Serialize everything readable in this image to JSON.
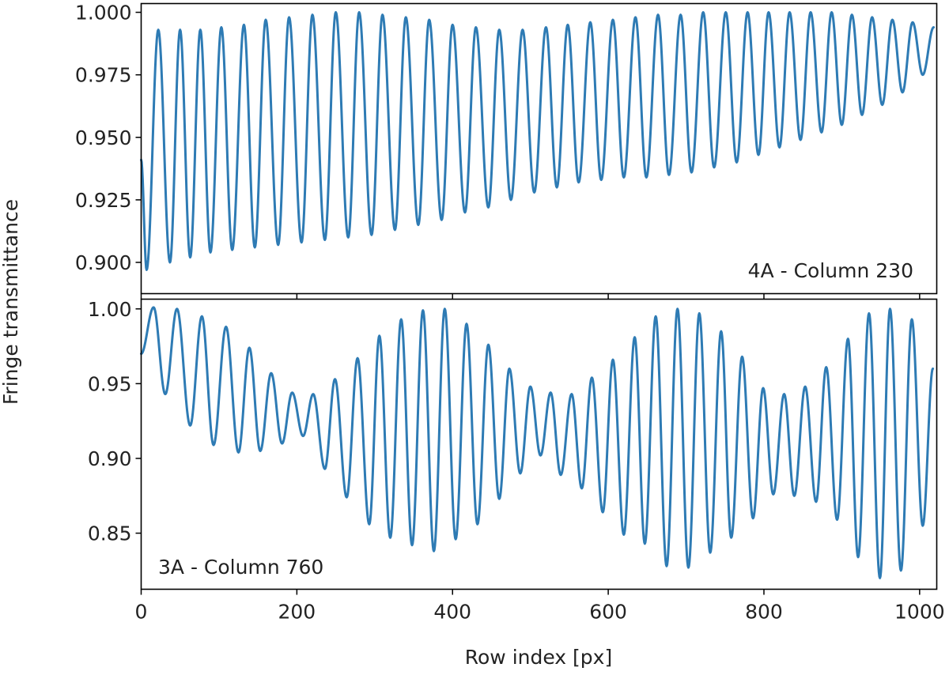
{
  "figure": {
    "ylabel": "Fringe transmittance",
    "xlabel": "Row index [px]"
  },
  "chart_data": [
    {
      "type": "line",
      "panel": "top",
      "annotation": "4A - Column 230",
      "annotation_position": "bottom-right",
      "xlim": [
        0,
        1022
      ],
      "ylim": [
        0.8875,
        1.0035
      ],
      "yticks": [
        0.9,
        0.925,
        0.95,
        0.975,
        1.0
      ],
      "ytick_labels": [
        "0.900",
        "0.925",
        "0.950",
        "0.975",
        "1.000"
      ],
      "xticks": [
        0,
        200,
        400,
        600,
        800,
        1000
      ],
      "xtick_labels": [
        "",
        "",
        "",
        "",
        "",
        ""
      ],
      "line_color": "#2e7bb4",
      "series": [
        {
          "extrema_x": [
            0,
            7,
            22,
            37,
            50,
            63,
            76,
            89,
            103,
            117,
            132,
            146,
            160,
            176,
            190,
            206,
            220,
            236,
            250,
            266,
            280,
            296,
            310,
            326,
            340,
            356,
            370,
            386,
            400,
            416,
            430,
            446,
            460,
            475,
            490,
            505,
            520,
            534,
            548,
            562,
            577,
            591,
            606,
            620,
            635,
            649,
            664,
            678,
            693,
            707,
            722,
            736,
            751,
            765,
            779,
            793,
            806,
            820,
            833,
            847,
            860,
            874,
            887,
            900,
            913,
            926,
            939,
            952,
            965,
            978,
            991,
            1004,
            1018
          ],
          "extrema_y": [
            0.941,
            0.897,
            0.993,
            0.9,
            0.993,
            0.902,
            0.993,
            0.904,
            0.994,
            0.905,
            0.995,
            0.906,
            0.997,
            0.907,
            0.998,
            0.908,
            0.999,
            0.909,
            1.0,
            0.91,
            1.0,
            0.911,
            0.999,
            0.913,
            0.998,
            0.915,
            0.997,
            0.917,
            0.995,
            0.92,
            0.994,
            0.922,
            0.993,
            0.925,
            0.993,
            0.928,
            0.994,
            0.93,
            0.995,
            0.932,
            0.996,
            0.933,
            0.997,
            0.934,
            0.998,
            0.934,
            0.999,
            0.935,
            0.999,
            0.936,
            1.0,
            0.938,
            1.0,
            0.94,
            1.0,
            0.943,
            1.0,
            0.946,
            1.0,
            0.949,
            1.0,
            0.952,
            1.0,
            0.955,
            0.999,
            0.959,
            0.998,
            0.963,
            0.997,
            0.968,
            0.996,
            0.975,
            0.994
          ]
        }
      ]
    },
    {
      "type": "line",
      "panel": "bottom",
      "annotation": "3A - Column 760",
      "annotation_position": "bottom-left",
      "xlim": [
        0,
        1022
      ],
      "ylim": [
        0.8125,
        1.0065
      ],
      "yticks": [
        0.85,
        0.9,
        0.95,
        1.0
      ],
      "ytick_labels": [
        "0.85",
        "0.90",
        "0.95",
        "1.00"
      ],
      "xticks": [
        0,
        200,
        400,
        600,
        800,
        1000
      ],
      "xtick_labels": [
        "0",
        "200",
        "400",
        "600",
        "800",
        "1000"
      ],
      "line_color": "#2e7bb4",
      "series": [
        {
          "extrema_x": [
            0,
            16,
            31,
            46,
            63,
            78,
            93,
            109,
            125,
            139,
            153,
            167,
            181,
            194,
            208,
            221,
            236,
            249,
            264,
            278,
            293,
            306,
            320,
            334,
            348,
            362,
            376,
            390,
            404,
            418,
            432,
            446,
            460,
            473,
            487,
            500,
            513,
            526,
            539,
            553,
            566,
            579,
            593,
            606,
            620,
            634,
            647,
            661,
            675,
            689,
            703,
            717,
            731,
            745,
            758,
            772,
            786,
            799,
            812,
            826,
            839,
            853,
            867,
            880,
            894,
            908,
            921,
            935,
            949,
            962,
            976,
            990,
            1004,
            1017
          ],
          "extrema_y": [
            0.97,
            1.001,
            0.943,
            1.0,
            0.922,
            0.995,
            0.909,
            0.988,
            0.904,
            0.974,
            0.905,
            0.957,
            0.91,
            0.944,
            0.915,
            0.943,
            0.893,
            0.953,
            0.874,
            0.967,
            0.856,
            0.982,
            0.847,
            0.993,
            0.842,
            0.999,
            0.838,
            1.0,
            0.846,
            0.99,
            0.856,
            0.976,
            0.873,
            0.96,
            0.89,
            0.948,
            0.902,
            0.944,
            0.889,
            0.943,
            0.88,
            0.954,
            0.864,
            0.966,
            0.849,
            0.981,
            0.843,
            0.995,
            0.828,
            1.0,
            0.827,
            0.997,
            0.837,
            0.985,
            0.847,
            0.968,
            0.86,
            0.947,
            0.876,
            0.943,
            0.875,
            0.948,
            0.871,
            0.961,
            0.859,
            0.98,
            0.834,
            0.997,
            0.82,
            1.0,
            0.825,
            0.993,
            0.855,
            0.96
          ]
        }
      ]
    }
  ]
}
